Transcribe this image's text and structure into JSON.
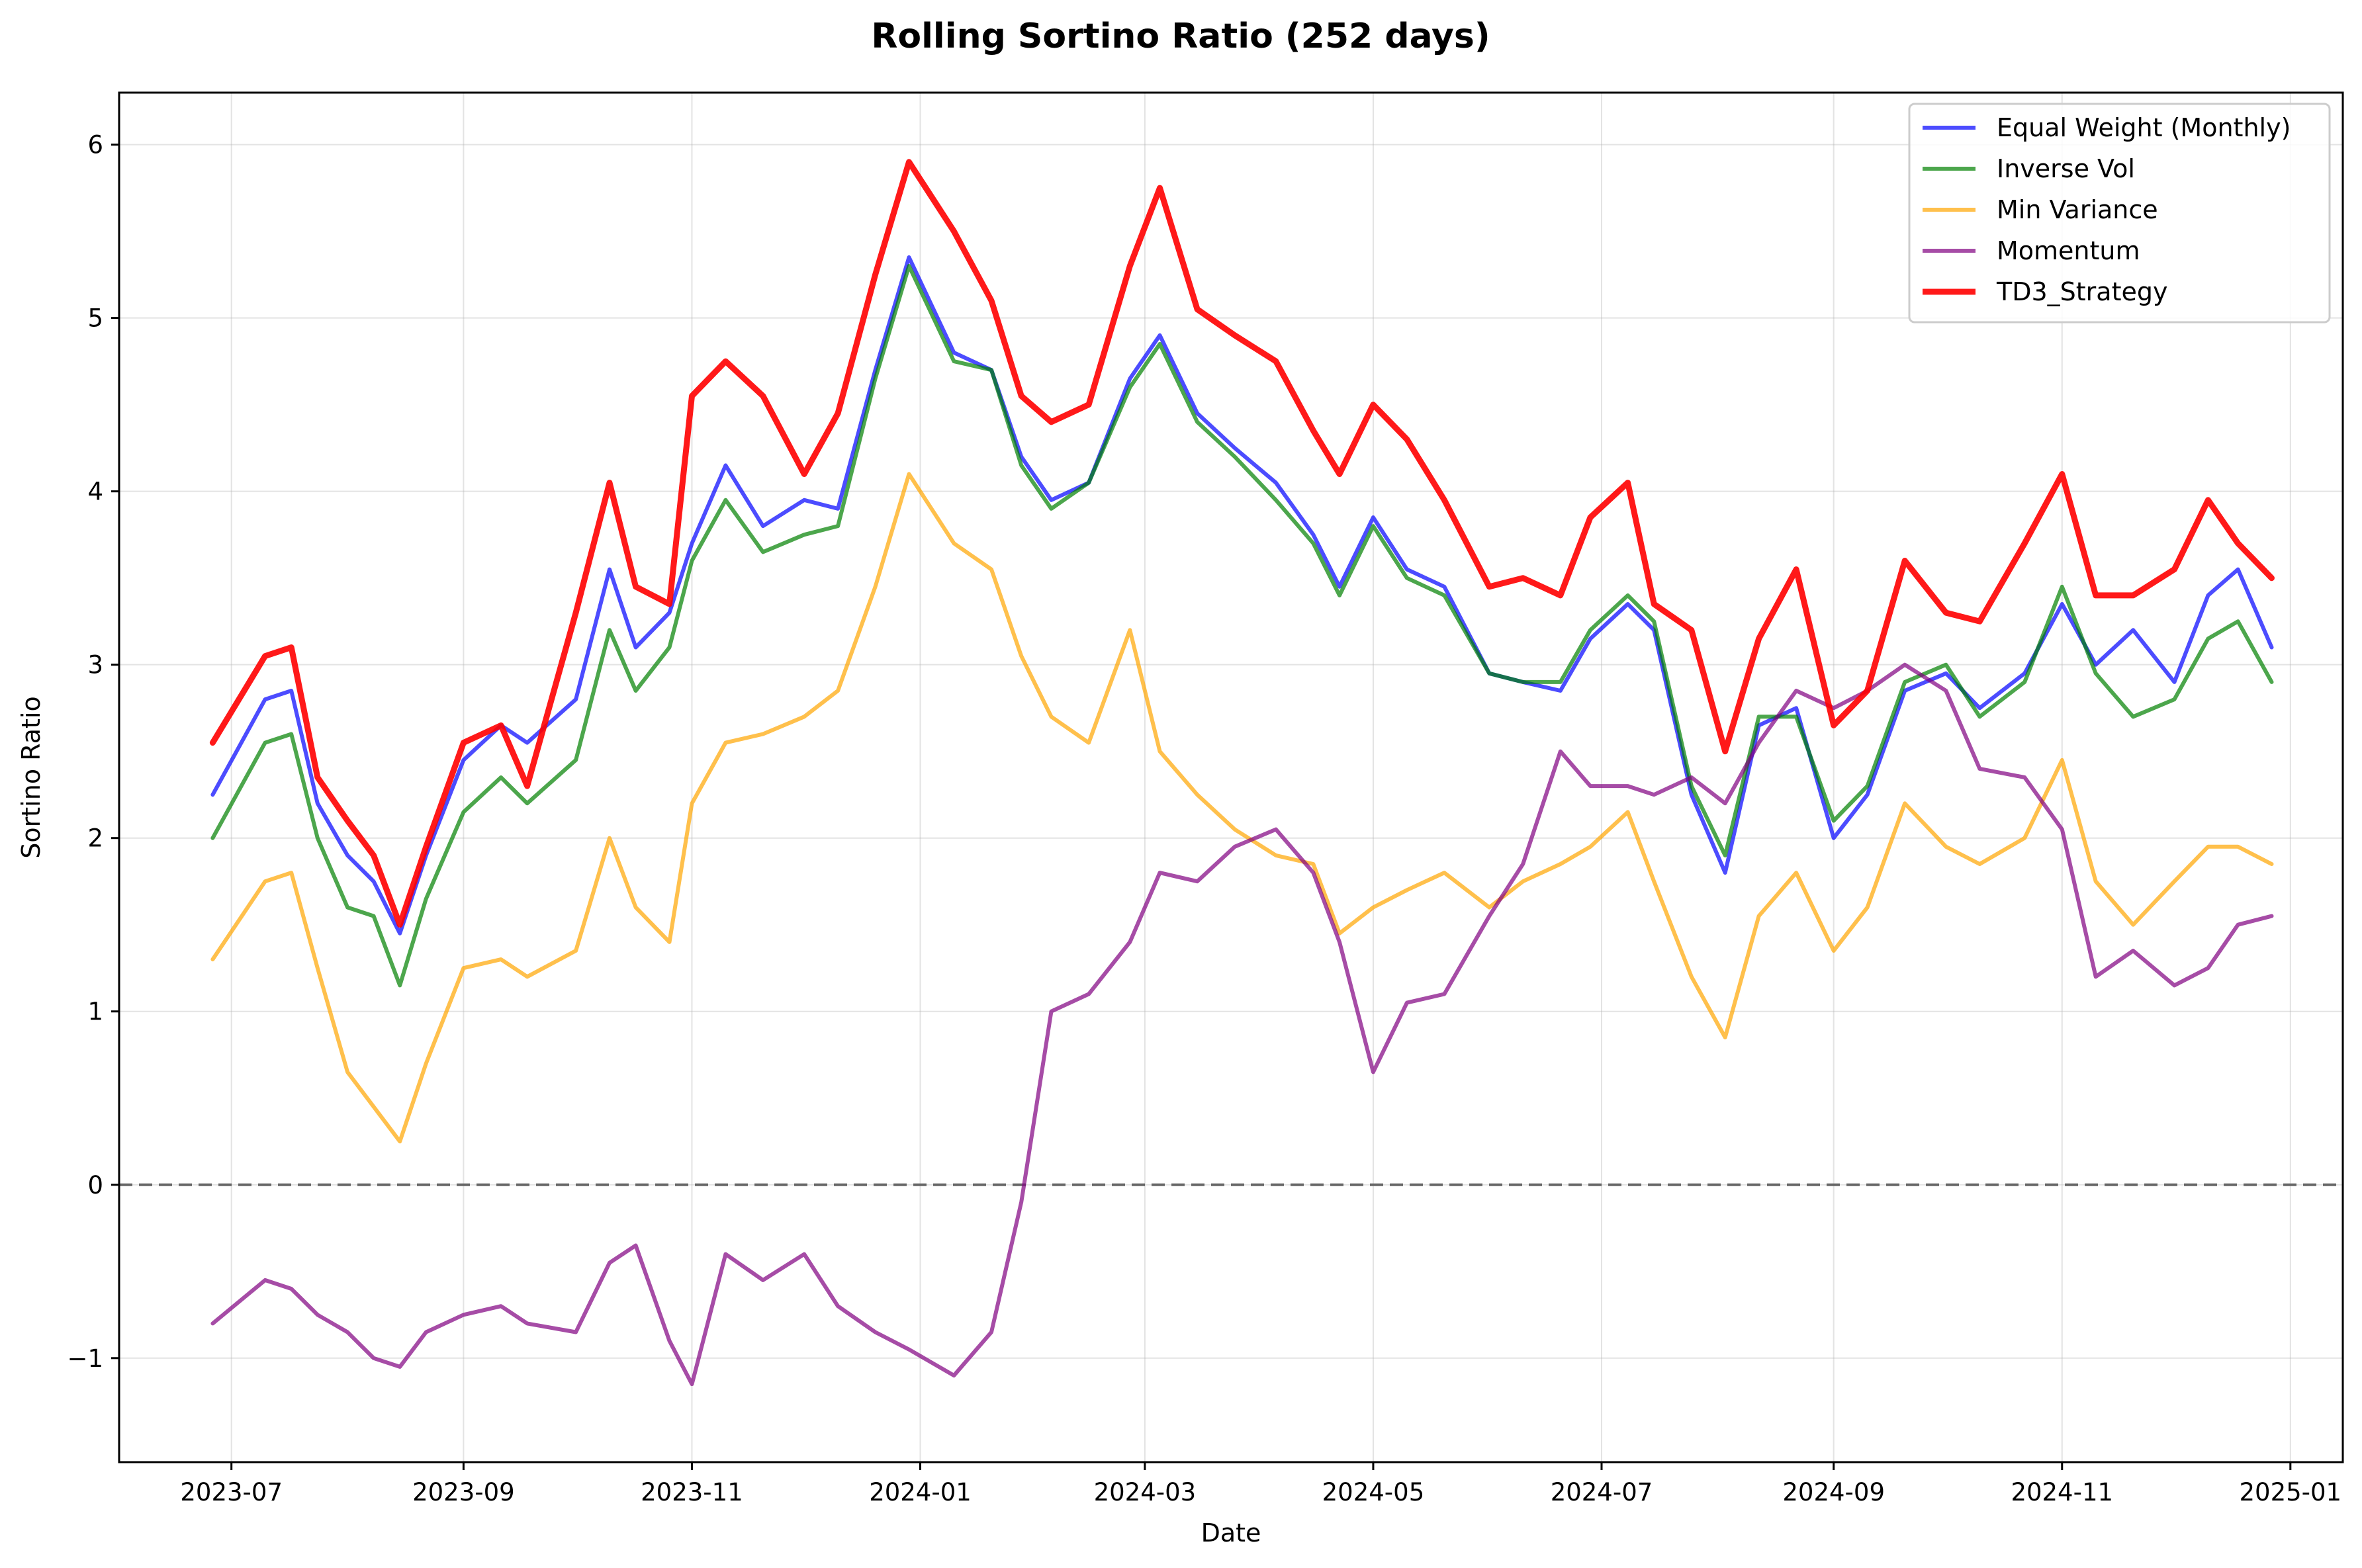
{
  "chart_data": {
    "type": "line",
    "title": "Rolling Sortino Ratio (252 days)",
    "xlabel": "Date",
    "ylabel": "Sortino Ratio",
    "xlim": [
      "2023-06-01",
      "2025-01-15"
    ],
    "ylim": [
      -1.6,
      6.3
    ],
    "grid": true,
    "legend_position": "top-right",
    "x_ticks": [
      "2023-07",
      "2023-09",
      "2023-11",
      "2024-01",
      "2024-03",
      "2024-05",
      "2024-07",
      "2024-09",
      "2024-11",
      "2025-01"
    ],
    "y_ticks": [
      -1,
      0,
      1,
      2,
      3,
      4,
      5,
      6
    ],
    "y_tick_labels": [
      "−1",
      "0",
      "1",
      "2",
      "3",
      "4",
      "5",
      "6"
    ],
    "reference_line": {
      "y": 0,
      "style": "dashed",
      "color": "#666666"
    },
    "x": [
      "2023-06-26",
      "2023-07-10",
      "2023-07-17",
      "2023-07-24",
      "2023-08-01",
      "2023-08-08",
      "2023-08-15",
      "2023-08-22",
      "2023-09-01",
      "2023-09-11",
      "2023-09-18",
      "2023-10-01",
      "2023-10-10",
      "2023-10-17",
      "2023-10-26",
      "2023-11-01",
      "2023-11-10",
      "2023-11-20",
      "2023-12-01",
      "2023-12-10",
      "2023-12-20",
      "2023-12-29",
      "2024-01-10",
      "2024-01-20",
      "2024-01-28",
      "2024-02-05",
      "2024-02-15",
      "2024-02-26",
      "2024-03-05",
      "2024-03-15",
      "2024-03-25",
      "2024-04-05",
      "2024-04-15",
      "2024-04-22",
      "2024-05-01",
      "2024-05-10",
      "2024-05-20",
      "2024-06-01",
      "2024-06-10",
      "2024-06-20",
      "2024-06-28",
      "2024-07-08",
      "2024-07-15",
      "2024-07-25",
      "2024-08-03",
      "2024-08-12",
      "2024-08-22",
      "2024-09-01",
      "2024-09-10",
      "2024-09-20",
      "2024-10-01",
      "2024-10-10",
      "2024-10-22",
      "2024-11-01",
      "2024-11-10",
      "2024-11-20",
      "2024-12-01",
      "2024-12-10",
      "2024-12-18",
      "2024-12-27"
    ],
    "series": [
      {
        "name": "Equal Weight (Monthly)",
        "color": "#0000ff",
        "values": [
          2.25,
          2.8,
          2.85,
          2.2,
          1.9,
          1.75,
          1.45,
          1.9,
          2.45,
          2.65,
          2.55,
          2.8,
          3.55,
          3.1,
          3.3,
          3.7,
          4.15,
          3.8,
          3.95,
          3.9,
          4.7,
          5.35,
          4.8,
          4.7,
          4.2,
          3.95,
          4.05,
          4.65,
          4.9,
          4.45,
          4.25,
          4.05,
          3.75,
          3.45,
          3.85,
          3.55,
          3.45,
          2.95,
          2.9,
          2.85,
          3.15,
          3.35,
          3.2,
          2.25,
          1.8,
          2.65,
          2.75,
          2.0,
          2.25,
          2.85,
          2.95,
          2.75,
          2.95,
          3.35,
          3.0,
          3.2,
          2.9,
          3.4,
          3.55,
          3.1
        ]
      },
      {
        "name": "Inverse Vol",
        "color": "#008000",
        "values": [
          2.0,
          2.55,
          2.6,
          2.0,
          1.6,
          1.55,
          1.15,
          1.65,
          2.15,
          2.35,
          2.2,
          2.45,
          3.2,
          2.85,
          3.1,
          3.6,
          3.95,
          3.65,
          3.75,
          3.8,
          4.65,
          5.3,
          4.75,
          4.7,
          4.15,
          3.9,
          4.05,
          4.6,
          4.85,
          4.4,
          4.2,
          3.95,
          3.7,
          3.4,
          3.8,
          3.5,
          3.4,
          2.95,
          2.9,
          2.9,
          3.2,
          3.4,
          3.25,
          2.3,
          1.9,
          2.7,
          2.7,
          2.1,
          2.3,
          2.9,
          3.0,
          2.7,
          2.9,
          3.45,
          2.95,
          2.7,
          2.8,
          3.15,
          3.25,
          2.9
        ]
      },
      {
        "name": "Min Variance",
        "color": "#ffa500",
        "values": [
          1.3,
          1.75,
          1.8,
          1.25,
          0.65,
          0.45,
          0.25,
          0.7,
          1.25,
          1.3,
          1.2,
          1.35,
          2.0,
          1.6,
          1.4,
          2.2,
          2.55,
          2.6,
          2.7,
          2.85,
          3.45,
          4.1,
          3.7,
          3.55,
          3.05,
          2.7,
          2.55,
          3.2,
          2.5,
          2.25,
          2.05,
          1.9,
          1.85,
          1.45,
          1.6,
          1.7,
          1.8,
          1.6,
          1.75,
          1.85,
          1.95,
          2.15,
          1.75,
          1.2,
          0.85,
          1.55,
          1.8,
          1.35,
          1.6,
          2.2,
          1.95,
          1.85,
          2.0,
          2.45,
          1.75,
          1.5,
          1.75,
          1.95,
          1.95,
          1.85
        ]
      },
      {
        "name": "Momentum",
        "color": "#800080",
        "values": [
          -0.8,
          -0.55,
          -0.6,
          -0.75,
          -0.85,
          -1.0,
          -1.05,
          -0.85,
          -0.75,
          -0.7,
          -0.8,
          -0.85,
          -0.45,
          -0.35,
          -0.9,
          -1.15,
          -0.4,
          -0.55,
          -0.4,
          -0.7,
          -0.85,
          -0.95,
          -1.1,
          -0.85,
          -0.1,
          1.0,
          1.1,
          1.4,
          1.8,
          1.75,
          1.95,
          2.05,
          1.8,
          1.4,
          0.65,
          1.05,
          1.1,
          1.55,
          1.85,
          2.5,
          2.3,
          2.3,
          2.25,
          2.35,
          2.2,
          2.55,
          2.85,
          2.75,
          2.85,
          3.0,
          2.85,
          2.4,
          2.35,
          2.05,
          1.2,
          1.35,
          1.15,
          1.25,
          1.5,
          1.55
        ]
      },
      {
        "name": "TD3_Strategy",
        "color": "#ff0000",
        "values": [
          2.55,
          3.05,
          3.1,
          2.35,
          2.1,
          1.9,
          1.5,
          1.95,
          2.55,
          2.65,
          2.3,
          3.3,
          4.05,
          3.45,
          3.35,
          4.55,
          4.75,
          4.55,
          4.1,
          4.45,
          5.25,
          5.9,
          5.5,
          5.1,
          4.55,
          4.4,
          4.5,
          5.3,
          5.75,
          5.05,
          4.9,
          4.75,
          4.35,
          4.1,
          4.5,
          4.3,
          3.95,
          3.45,
          3.5,
          3.4,
          3.85,
          4.05,
          3.35,
          3.2,
          2.5,
          3.15,
          3.55,
          2.65,
          2.85,
          3.6,
          3.3,
          3.25,
          3.7,
          4.1,
          3.4,
          3.4,
          3.55,
          3.95,
          3.7,
          3.5
        ]
      }
    ]
  }
}
